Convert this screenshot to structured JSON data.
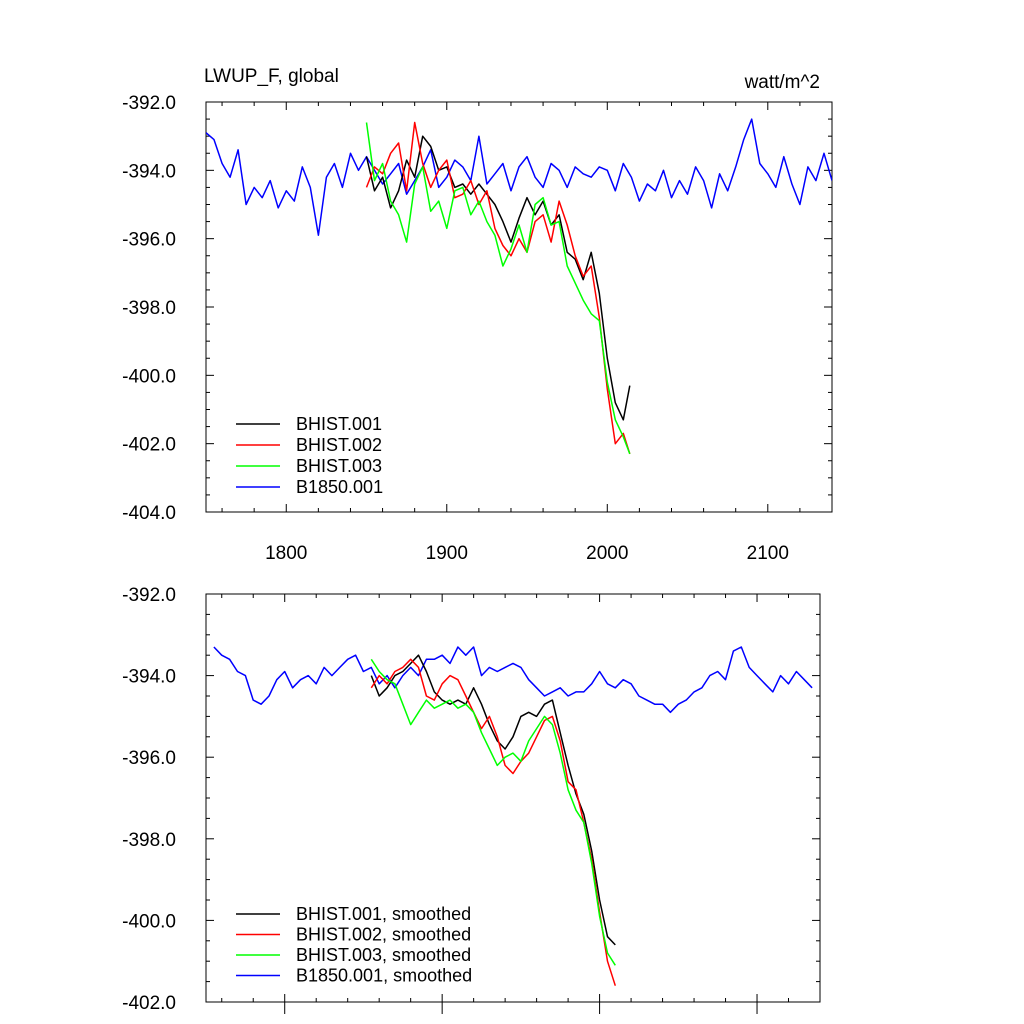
{
  "chart_data": [
    {
      "type": "line",
      "title": "LWUP_F, global",
      "units": "watt/m^2",
      "xlim": [
        1750,
        2140
      ],
      "ylim": [
        -404,
        -392
      ],
      "yticks": [
        -392,
        -394,
        -396,
        -398,
        -400,
        -402,
        -404
      ],
      "ytick_labels": [
        "-392.0",
        "-394.0",
        "-396.0",
        "-398.0",
        "-400.0",
        "-402.0",
        "-404.0"
      ],
      "xticks": [
        1800,
        1900,
        2000,
        2100
      ],
      "xtick_labels": [
        "1800",
        "1900",
        "2000",
        "2100"
      ],
      "legend_position": "bottom-left",
      "series": [
        {
          "name": "BHIST.001",
          "color": "#000000",
          "x": [
            1850,
            1855,
            1860,
            1865,
            1870,
            1875,
            1880,
            1885,
            1890,
            1895,
            1900,
            1905,
            1910,
            1915,
            1920,
            1925,
            1930,
            1935,
            1940,
            1945,
            1950,
            1955,
            1960,
            1965,
            1970,
            1975,
            1980,
            1985,
            1990,
            1995,
            2000,
            2005,
            2010,
            2014
          ],
          "y": [
            -393.6,
            -394.6,
            -394.2,
            -395.1,
            -394.6,
            -393.7,
            -394.2,
            -393.0,
            -393.3,
            -394.0,
            -393.9,
            -394.5,
            -394.4,
            -394.7,
            -394.4,
            -394.7,
            -395.0,
            -395.5,
            -396.1,
            -395.4,
            -394.8,
            -395.3,
            -394.9,
            -395.6,
            -395.3,
            -396.4,
            -396.6,
            -397.2,
            -396.4,
            -397.6,
            -399.5,
            -400.8,
            -401.3,
            -400.3
          ]
        },
        {
          "name": "BHIST.002",
          "color": "#ff0000",
          "x": [
            1850,
            1855,
            1860,
            1865,
            1870,
            1875,
            1880,
            1885,
            1890,
            1895,
            1900,
            1905,
            1910,
            1915,
            1920,
            1925,
            1930,
            1935,
            1940,
            1945,
            1950,
            1955,
            1960,
            1965,
            1970,
            1975,
            1980,
            1985,
            1990,
            1995,
            2000,
            2005,
            2010,
            2014
          ],
          "y": [
            -394.5,
            -393.9,
            -394.1,
            -393.5,
            -393.2,
            -394.6,
            -392.6,
            -393.8,
            -394.5,
            -394.0,
            -393.7,
            -394.8,
            -394.7,
            -394.3,
            -395.0,
            -394.6,
            -395.7,
            -396.2,
            -396.5,
            -396.0,
            -396.4,
            -395.5,
            -395.3,
            -396.1,
            -394.9,
            -395.6,
            -396.5,
            -397.1,
            -396.8,
            -398.3,
            -400.4,
            -402.0,
            -401.7,
            -402.3
          ]
        },
        {
          "name": "BHIST.003",
          "color": "#00ff00",
          "x": [
            1850,
            1855,
            1860,
            1865,
            1870,
            1875,
            1880,
            1885,
            1890,
            1895,
            1900,
            1905,
            1910,
            1915,
            1920,
            1925,
            1930,
            1935,
            1940,
            1945,
            1950,
            1955,
            1960,
            1965,
            1970,
            1975,
            1980,
            1985,
            1990,
            1995,
            2000,
            2005,
            2010,
            2014
          ],
          "y": [
            -392.6,
            -394.3,
            -393.8,
            -394.9,
            -395.3,
            -396.1,
            -394.4,
            -393.9,
            -395.2,
            -394.9,
            -395.7,
            -394.6,
            -394.5,
            -395.3,
            -394.9,
            -395.5,
            -395.9,
            -396.8,
            -396.3,
            -395.6,
            -396.4,
            -395.0,
            -394.8,
            -395.6,
            -395.5,
            -396.8,
            -397.3,
            -397.8,
            -398.2,
            -398.4,
            -400.2,
            -401.3,
            -401.8,
            -402.3
          ]
        },
        {
          "name": "B1850.001",
          "color": "#0000ff",
          "x": [
            1750,
            1755,
            1760,
            1765,
            1770,
            1775,
            1780,
            1785,
            1790,
            1795,
            1800,
            1805,
            1810,
            1815,
            1820,
            1825,
            1830,
            1835,
            1840,
            1845,
            1850,
            1855,
            1860,
            1865,
            1870,
            1875,
            1880,
            1885,
            1890,
            1895,
            1900,
            1905,
            1910,
            1915,
            1920,
            1925,
            1930,
            1935,
            1940,
            1945,
            1950,
            1955,
            1960,
            1965,
            1970,
            1975,
            1980,
            1985,
            1990,
            1995,
            2000,
            2005,
            2010,
            2015,
            2020,
            2025,
            2030,
            2035,
            2040,
            2045,
            2050,
            2055,
            2060,
            2065,
            2070,
            2075,
            2080,
            2085,
            2090,
            2095,
            2100,
            2105,
            2110,
            2115,
            2120,
            2125,
            2130,
            2135,
            2140
          ],
          "y": [
            -392.9,
            -393.1,
            -393.8,
            -394.2,
            -393.4,
            -395.0,
            -394.5,
            -394.8,
            -394.3,
            -395.1,
            -394.6,
            -394.9,
            -393.9,
            -394.5,
            -395.9,
            -394.2,
            -393.8,
            -394.5,
            -393.5,
            -394.0,
            -393.6,
            -394.0,
            -394.4,
            -394.1,
            -393.8,
            -394.7,
            -394.3,
            -393.9,
            -393.4,
            -394.5,
            -394.2,
            -393.7,
            -393.9,
            -394.3,
            -393.0,
            -394.4,
            -394.1,
            -393.8,
            -394.6,
            -393.9,
            -393.6,
            -394.2,
            -394.5,
            -393.8,
            -394.0,
            -394.5,
            -393.9,
            -394.1,
            -394.2,
            -393.9,
            -394.0,
            -394.6,
            -393.8,
            -394.2,
            -394.9,
            -394.4,
            -394.6,
            -394.0,
            -394.8,
            -394.3,
            -394.7,
            -393.9,
            -394.3,
            -395.1,
            -394.1,
            -394.6,
            -393.9,
            -393.1,
            -392.5,
            -393.8,
            -394.1,
            -394.5,
            -393.6,
            -394.4,
            -395.0,
            -393.9,
            -394.3,
            -393.5,
            -394.3
          ]
        }
      ]
    },
    {
      "type": "line",
      "xlim": [
        1750,
        2140
      ],
      "ylim": [
        -402,
        -392
      ],
      "yticks": [
        -392,
        -394,
        -396,
        -398,
        -400,
        -402
      ],
      "ytick_labels": [
        "-392.0",
        "-394.0",
        "-396.0",
        "-398.0",
        "-400.0",
        "-402.0"
      ],
      "legend_position": "bottom-left",
      "series": [
        {
          "name": "BHIST.001, smoothed",
          "color": "#000000",
          "x": [
            1855,
            1860,
            1865,
            1870,
            1875,
            1880,
            1885,
            1890,
            1895,
            1900,
            1905,
            1910,
            1915,
            1920,
            1925,
            1930,
            1935,
            1940,
            1945,
            1950,
            1955,
            1960,
            1965,
            1970,
            1975,
            1980,
            1985,
            1990,
            1995,
            2000,
            2005,
            2010
          ],
          "y": [
            -394.0,
            -394.5,
            -394.3,
            -394.0,
            -393.9,
            -393.7,
            -393.5,
            -393.9,
            -394.4,
            -394.6,
            -394.7,
            -394.6,
            -394.7,
            -394.3,
            -394.7,
            -395.2,
            -395.6,
            -395.8,
            -395.5,
            -395.0,
            -394.9,
            -395.0,
            -394.7,
            -394.6,
            -395.4,
            -396.2,
            -396.9,
            -397.4,
            -398.3,
            -399.5,
            -400.4,
            -400.6
          ]
        },
        {
          "name": "BHIST.002, smoothed",
          "color": "#ff0000",
          "x": [
            1855,
            1860,
            1865,
            1870,
            1875,
            1880,
            1885,
            1890,
            1895,
            1900,
            1905,
            1910,
            1915,
            1920,
            1925,
            1930,
            1935,
            1940,
            1945,
            1950,
            1955,
            1960,
            1965,
            1970,
            1975,
            1980,
            1985,
            1990,
            1995,
            2000,
            2005,
            2010
          ],
          "y": [
            -394.3,
            -394.0,
            -394.2,
            -393.9,
            -393.8,
            -393.6,
            -393.8,
            -394.5,
            -394.6,
            -394.2,
            -394.0,
            -394.1,
            -394.5,
            -394.9,
            -395.3,
            -395.0,
            -395.5,
            -396.2,
            -396.4,
            -396.1,
            -395.9,
            -395.5,
            -395.1,
            -395.0,
            -395.6,
            -396.6,
            -396.8,
            -397.6,
            -398.5,
            -399.8,
            -401.0,
            -401.6
          ]
        },
        {
          "name": "BHIST.003, smoothed",
          "color": "#00ff00",
          "x": [
            1855,
            1860,
            1865,
            1870,
            1875,
            1880,
            1885,
            1890,
            1895,
            1900,
            1905,
            1910,
            1915,
            1920,
            1925,
            1930,
            1935,
            1940,
            1945,
            1950,
            1955,
            1960,
            1965,
            1970,
            1975,
            1980,
            1985,
            1990,
            1995,
            2000,
            2005,
            2010
          ],
          "y": [
            -393.6,
            -393.9,
            -394.1,
            -394.2,
            -394.7,
            -395.2,
            -394.9,
            -394.6,
            -394.8,
            -394.7,
            -394.6,
            -394.8,
            -394.7,
            -394.9,
            -395.4,
            -395.8,
            -396.2,
            -396.0,
            -395.9,
            -396.1,
            -395.6,
            -395.3,
            -395.0,
            -395.2,
            -395.9,
            -396.8,
            -397.3,
            -397.6,
            -398.6,
            -399.9,
            -400.8,
            -401.1
          ]
        },
        {
          "name": "B1850.001, smoothed",
          "color": "#0000ff",
          "x": [
            1755,
            1760,
            1765,
            1770,
            1775,
            1780,
            1785,
            1790,
            1795,
            1800,
            1805,
            1810,
            1815,
            1820,
            1825,
            1830,
            1835,
            1840,
            1845,
            1850,
            1855,
            1860,
            1865,
            1870,
            1875,
            1880,
            1885,
            1890,
            1895,
            1900,
            1905,
            1910,
            1915,
            1920,
            1925,
            1930,
            1935,
            1940,
            1945,
            1950,
            1955,
            1960,
            1965,
            1970,
            1975,
            1980,
            1985,
            1990,
            1995,
            2000,
            2005,
            2010,
            2015,
            2020,
            2025,
            2030,
            2035,
            2040,
            2045,
            2050,
            2055,
            2060,
            2065,
            2070,
            2075,
            2080,
            2085,
            2090,
            2095,
            2100,
            2105,
            2110,
            2115,
            2120,
            2125,
            2130,
            2135
          ],
          "y": [
            -393.3,
            -393.5,
            -393.6,
            -393.9,
            -394.0,
            -394.6,
            -394.7,
            -394.5,
            -394.1,
            -393.9,
            -394.3,
            -394.1,
            -394.0,
            -394.2,
            -393.8,
            -394.0,
            -393.8,
            -393.6,
            -393.5,
            -393.9,
            -393.8,
            -394.2,
            -394.0,
            -394.3,
            -394.0,
            -393.8,
            -394.0,
            -393.6,
            -393.6,
            -393.5,
            -393.7,
            -393.3,
            -393.5,
            -393.3,
            -394.0,
            -393.8,
            -393.9,
            -393.8,
            -393.7,
            -393.8,
            -394.1,
            -394.3,
            -394.5,
            -394.4,
            -394.3,
            -394.5,
            -394.4,
            -394.4,
            -394.2,
            -393.9,
            -394.2,
            -394.3,
            -394.1,
            -394.2,
            -394.5,
            -394.6,
            -394.7,
            -394.7,
            -394.9,
            -394.7,
            -394.6,
            -394.4,
            -394.3,
            -394.0,
            -393.9,
            -394.1,
            -393.4,
            -393.3,
            -393.8,
            -394.0,
            -394.2,
            -394.4,
            -394.0,
            -394.2,
            -393.9,
            -394.1,
            -394.3
          ]
        }
      ]
    }
  ]
}
